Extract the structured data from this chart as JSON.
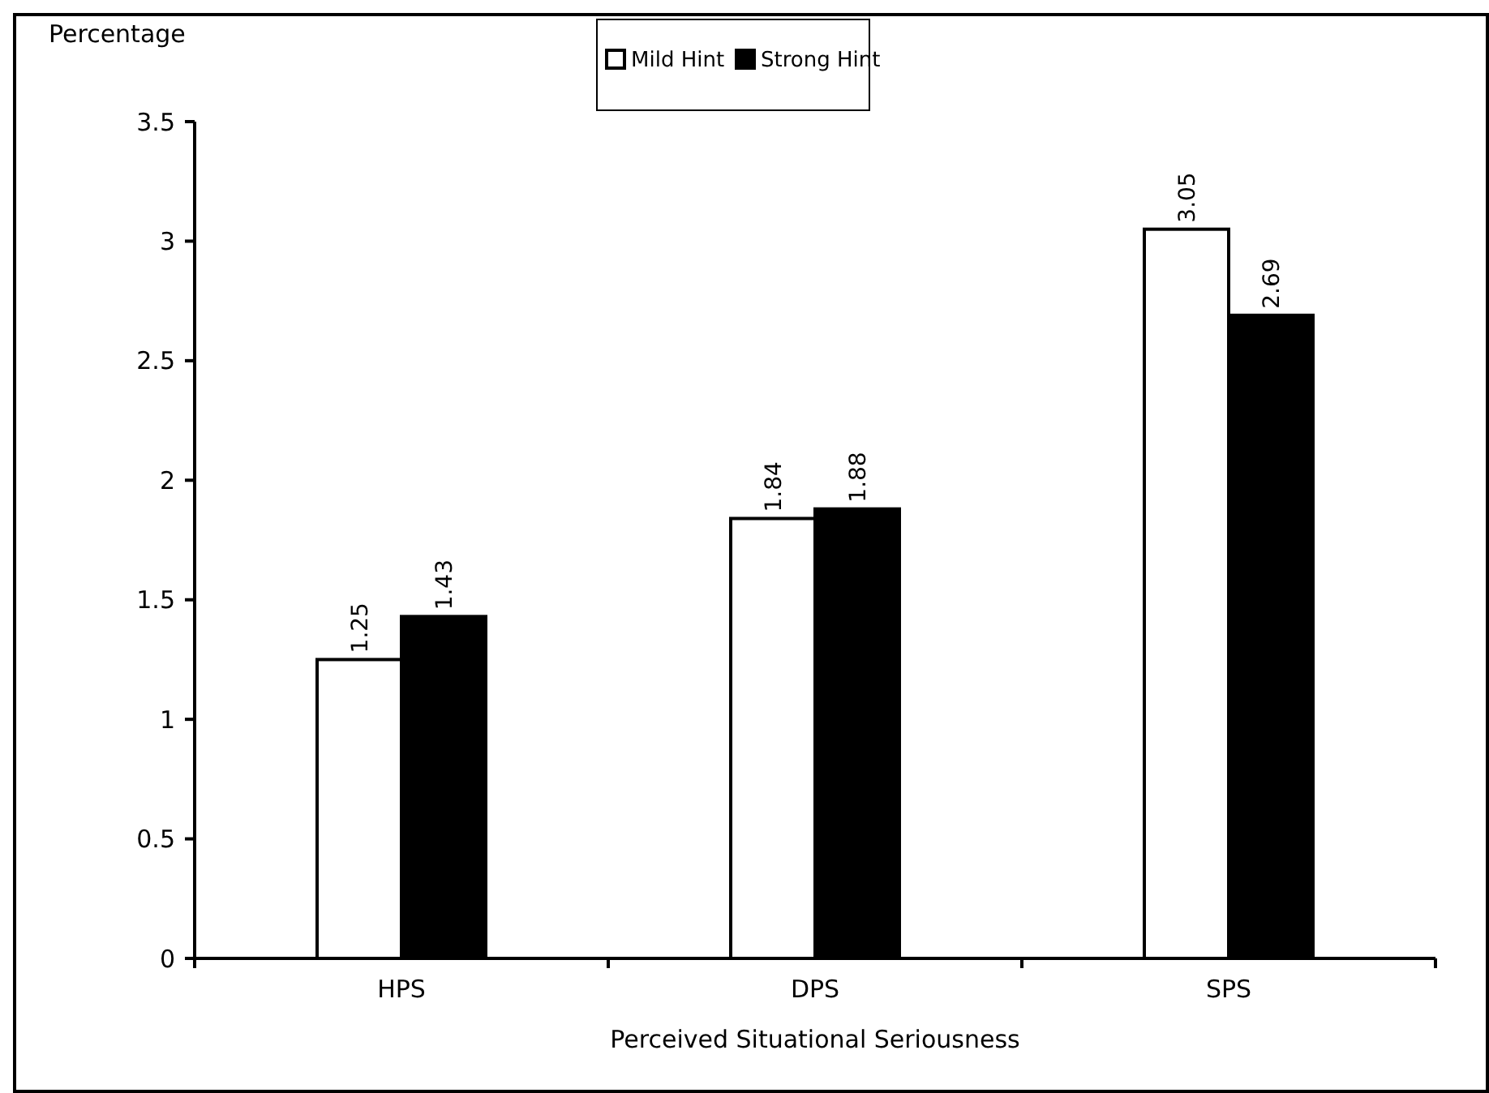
{
  "chart_data": {
    "type": "bar",
    "ylabel": "Percentage",
    "xlabel": "Perceived Situational Seriousness",
    "categories": [
      "HPS",
      "DPS",
      "SPS"
    ],
    "series": [
      {
        "name": "Mild Hint",
        "color": "#ffffff",
        "values": [
          1.25,
          1.84,
          3.05
        ]
      },
      {
        "name": "Strong Hint",
        "color": "#000000",
        "values": [
          1.43,
          1.88,
          2.69
        ]
      }
    ],
    "ylim": [
      0,
      3.5
    ],
    "yticks": [
      0,
      0.5,
      1,
      1.5,
      2,
      2.5,
      3,
      3.5
    ],
    "data_labels": true,
    "grid": false,
    "legend": "top"
  }
}
